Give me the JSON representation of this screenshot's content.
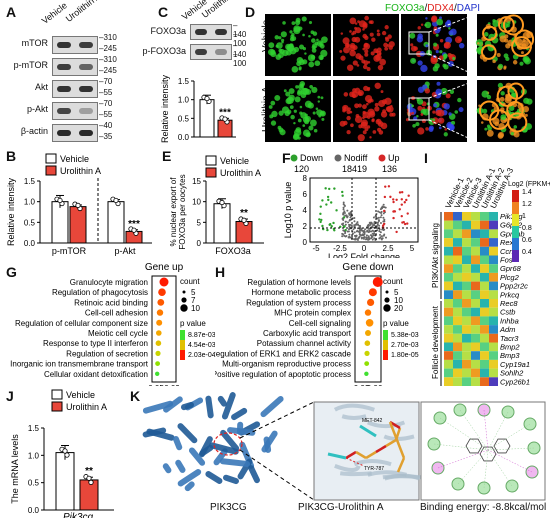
{
  "panels": {
    "A": {
      "label": "A",
      "lanes": [
        "Vehicle",
        "Urolithin A"
      ],
      "rows": [
        {
          "name": "mTOR",
          "marker": "310",
          "marker2": "245"
        },
        {
          "name": "p-mTOR",
          "marker": "310",
          "marker2": "245"
        },
        {
          "name": "Akt",
          "marker": "70",
          "marker2": "55"
        },
        {
          "name": "p-Akt",
          "marker": "70",
          "marker2": "55"
        },
        {
          "name": "β-actin",
          "marker": "40",
          "marker2": "35"
        }
      ]
    },
    "B": {
      "label": "B",
      "legend": [
        "Vehicle",
        "Urolithin A"
      ],
      "ylabel": "Relative intensity",
      "categories": [
        "p-mTOR",
        "p-Akt"
      ],
      "yticks": [
        "0.0",
        "0.5",
        "1.0",
        "1.5"
      ],
      "sig": "***"
    },
    "C": {
      "label": "C",
      "lanes": [
        "Vehicle",
        "Urolithin A"
      ],
      "rows": [
        {
          "name": "FOXO3a",
          "marker": "140",
          "marker2": "100"
        },
        {
          "name": "p-FOXO3a",
          "marker": "140",
          "marker2": "100"
        }
      ],
      "ylabel": "Relative intensity",
      "yticks": [
        "0.0",
        "0.5",
        "1.0",
        "1.5"
      ],
      "sig": "***"
    },
    "D": {
      "label": "D",
      "title_foxo": "FOXO3a",
      "title_ddx": "DDX4",
      "title_dapi": "DAPI",
      "title_sep": "/",
      "rows": [
        "Vehicle",
        "Urolithin A"
      ]
    },
    "E": {
      "label": "E",
      "legend": [
        "Vehicle",
        "Urolithin A"
      ],
      "ylabel": "% nuclear export of FOXO3a per oocytes",
      "yticks": [
        "0",
        "5",
        "10",
        "15"
      ],
      "xlabel": "FOXO3a",
      "sig": "**"
    },
    "F": {
      "label": "F",
      "legend": [
        {
          "name": "Down",
          "count": "120",
          "color": "#2ca02c"
        },
        {
          "name": "Nodiff",
          "count": "18419",
          "color": "#666666"
        },
        {
          "name": "Up",
          "count": "136",
          "color": "#d62728"
        }
      ],
      "ylabel": "Log10 p value",
      "xlabel": "Log2 Fold change",
      "xticks": [
        "-5",
        "-2.5",
        "0",
        "2.5",
        "5"
      ],
      "yticks": [
        "0",
        "2",
        "4",
        "6",
        "8"
      ]
    },
    "G": {
      "label": "G",
      "title": "Gene up",
      "terms": [
        "Granulocyte migration",
        "Regulation of phagocytosis",
        "Retinoic acid binding",
        "Cell-cell adhesion",
        "Regulation of cellular component size",
        "Meiotic cell cycle",
        "Response to type II interferon",
        "Regulation of secretion",
        "Inorganic ion transmembrane transport",
        "Cellular oxidant detoxification"
      ],
      "xticks": [
        "0.05",
        "0.09"
      ],
      "count_title": "count",
      "count_levels": [
        "5",
        "7",
        "10"
      ],
      "p_title": "p value",
      "p_levels": [
        "8.87e-03",
        "4.54e-03",
        "2.03e-04"
      ]
    },
    "H": {
      "label": "H",
      "title": "Gene down",
      "terms": [
        "Regulation of hormone levels",
        "Hormone metabolic process",
        "Regulation of system process",
        "MHC protein complex",
        "Cell-cell signaling",
        "Carboxylic acid transport",
        "Potassium channel activity",
        "Regulation of ERK1 and ERK2 cascade",
        "Multi-organism reproductive process",
        "Positive regulation of apoptotic process"
      ],
      "xticks": [
        "0.02",
        "0.06"
      ],
      "count_title": "count",
      "count_levels": [
        "5",
        "10",
        "20"
      ],
      "p_title": "p value",
      "p_levels": [
        "5.38e-03",
        "2.70e-03",
        "1.80e-05"
      ]
    },
    "I": {
      "label": "I",
      "columns": [
        "Vehicle-1",
        "Vehicle-2",
        "Vehicle-3",
        "Urolithin A-1",
        "Urolithin A-2",
        "Urolithin A-3"
      ],
      "genes": [
        "Pik3cg",
        "G6pc2",
        "Gpnmb",
        "Rex2",
        "Ccn1",
        "Fos",
        "Gpr68",
        "Plcg2",
        "Ppp2r2c",
        "Prkcq",
        "Rec8",
        "Cstb",
        "Inhba",
        "Adm",
        "Tacr3",
        "Bmp2",
        "Bmp3",
        "Cyp19a1",
        "Sohlh2",
        "Cyp26b1"
      ],
      "groups": [
        "PI3K/Akt signaling",
        "Follicle development"
      ],
      "scale_title": "Log2 (FPKM+1)",
      "scale_ticks": [
        "1.4",
        "1.2",
        "1",
        "0.8",
        "0.6",
        "0.4"
      ],
      "values": [
        [
          1.25,
          0.55,
          1.05,
          0.95,
          0.85,
          0.75
        ],
        [
          0.95,
          0.85,
          0.75,
          1.05,
          1.25,
          0.45
        ],
        [
          0.85,
          0.95,
          1.15,
          0.65,
          0.75,
          0.95
        ],
        [
          1.05,
          0.75,
          0.95,
          0.85,
          1.25,
          0.55
        ],
        [
          0.75,
          1.25,
          0.85,
          0.95,
          0.65,
          1.05
        ],
        [
          0.95,
          1.05,
          0.75,
          1.15,
          0.85,
          0.65
        ],
        [
          1.15,
          0.85,
          0.95,
          0.75,
          1.05,
          0.85
        ],
        [
          0.85,
          0.95,
          1.05,
          0.95,
          0.75,
          1.15
        ],
        [
          1.05,
          0.75,
          0.85,
          1.25,
          0.95,
          0.65
        ],
        [
          0.65,
          1.15,
          0.95,
          0.85,
          1.05,
          0.95
        ],
        [
          0.95,
          0.85,
          1.15,
          0.95,
          0.75,
          1.05
        ],
        [
          1.15,
          0.95,
          0.85,
          0.75,
          1.05,
          0.95
        ],
        [
          0.85,
          1.05,
          0.95,
          1.15,
          0.85,
          0.75
        ],
        [
          0.95,
          0.85,
          1.05,
          0.95,
          1.15,
          0.65
        ],
        [
          1.05,
          0.95,
          0.75,
          0.85,
          0.95,
          1.25
        ],
        [
          0.75,
          1.15,
          0.95,
          1.05,
          0.85,
          0.95
        ],
        [
          1.25,
          0.85,
          0.95,
          0.65,
          1.05,
          0.85
        ],
        [
          0.95,
          0.75,
          1.15,
          0.95,
          0.85,
          1.05
        ],
        [
          0.85,
          1.05,
          0.95,
          1.15,
          0.75,
          0.95
        ],
        [
          1.05,
          0.95,
          0.85,
          0.95,
          1.25,
          0.45
        ]
      ]
    },
    "J": {
      "label": "J",
      "legend": [
        "Vehicle",
        "Urolithin A"
      ],
      "ylabel": "The mRNA levels",
      "yticks": [
        "0.0",
        "0.5",
        "1.0",
        "1.5"
      ],
      "xlabel": "Pik3cg",
      "sig": "**"
    },
    "K": {
      "label": "K",
      "caption_protein": "PIK3CG",
      "caption_complex": "PIK3CG-Urolithin A",
      "binding": "Binding energy:   -8.8kcal/mol",
      "residue1": "MET-842",
      "residue2": "TYR-787"
    }
  },
  "chart_data": [
    {
      "type": "bar",
      "panel": "B",
      "categories": [
        "p-mTOR",
        "p-Akt"
      ],
      "series": [
        {
          "name": "Vehicle",
          "values": [
            1.0,
            1.0
          ]
        },
        {
          "name": "Urolithin A",
          "values": [
            0.88,
            0.28
          ]
        }
      ],
      "ylabel": "Relative intensity",
      "ylim": [
        0,
        1.5
      ]
    },
    {
      "type": "bar",
      "panel": "C",
      "categories": [
        ""
      ],
      "series": [
        {
          "name": "Vehicle",
          "values": [
            1.0
          ]
        },
        {
          "name": "Urolithin A",
          "values": [
            0.45
          ]
        }
      ],
      "ylabel": "Relative intensity",
      "ylim": [
        0,
        1.5
      ]
    },
    {
      "type": "bar",
      "panel": "E",
      "categories": [
        "FOXO3a"
      ],
      "series": [
        {
          "name": "Vehicle",
          "values": [
            9.5
          ]
        },
        {
          "name": "Urolithin A",
          "values": [
            5.2
          ]
        }
      ],
      "ylabel": "% nuclear export of FOXO3a per oocytes",
      "ylim": [
        0,
        15
      ]
    },
    {
      "type": "bar",
      "panel": "J",
      "categories": [
        "Pik3cg"
      ],
      "series": [
        {
          "name": "Vehicle",
          "values": [
            1.05
          ]
        },
        {
          "name": "Urolithin A",
          "values": [
            0.55
          ]
        }
      ],
      "ylabel": "The mRNA levels",
      "ylim": [
        0,
        1.5
      ]
    },
    {
      "type": "scatter",
      "panel": "G",
      "x": [
        0.07,
        0.065,
        0.062,
        0.06,
        0.058,
        0.057,
        0.056,
        0.055,
        0.054,
        0.053
      ],
      "y": [
        "Granulocyte migration",
        "Regulation of phagocytosis",
        "Retinoic acid binding",
        "Cell-cell adhesion",
        "Regulation of cellular component size",
        "Meiotic cell cycle",
        "Response to type II interferon",
        "Regulation of secretion",
        "Inorganic ion transmembrane transport",
        "Cellular oxidant detoxification"
      ]
    },
    {
      "type": "scatter",
      "panel": "H",
      "x": [
        0.07,
        0.055,
        0.048,
        0.04,
        0.045,
        0.04,
        0.038,
        0.037,
        0.036,
        0.035
      ],
      "y": [
        "Regulation of hormone levels",
        "Hormone metabolic process",
        "Regulation of system process",
        "MHC protein complex",
        "Cell-cell signaling",
        "Carboxylic acid transport",
        "Potassium channel activity",
        "Regulation of ERK1 and ERK2 cascade",
        "Multi-organism reproductive process",
        "Positive regulation of apoptotic process"
      ]
    }
  ]
}
